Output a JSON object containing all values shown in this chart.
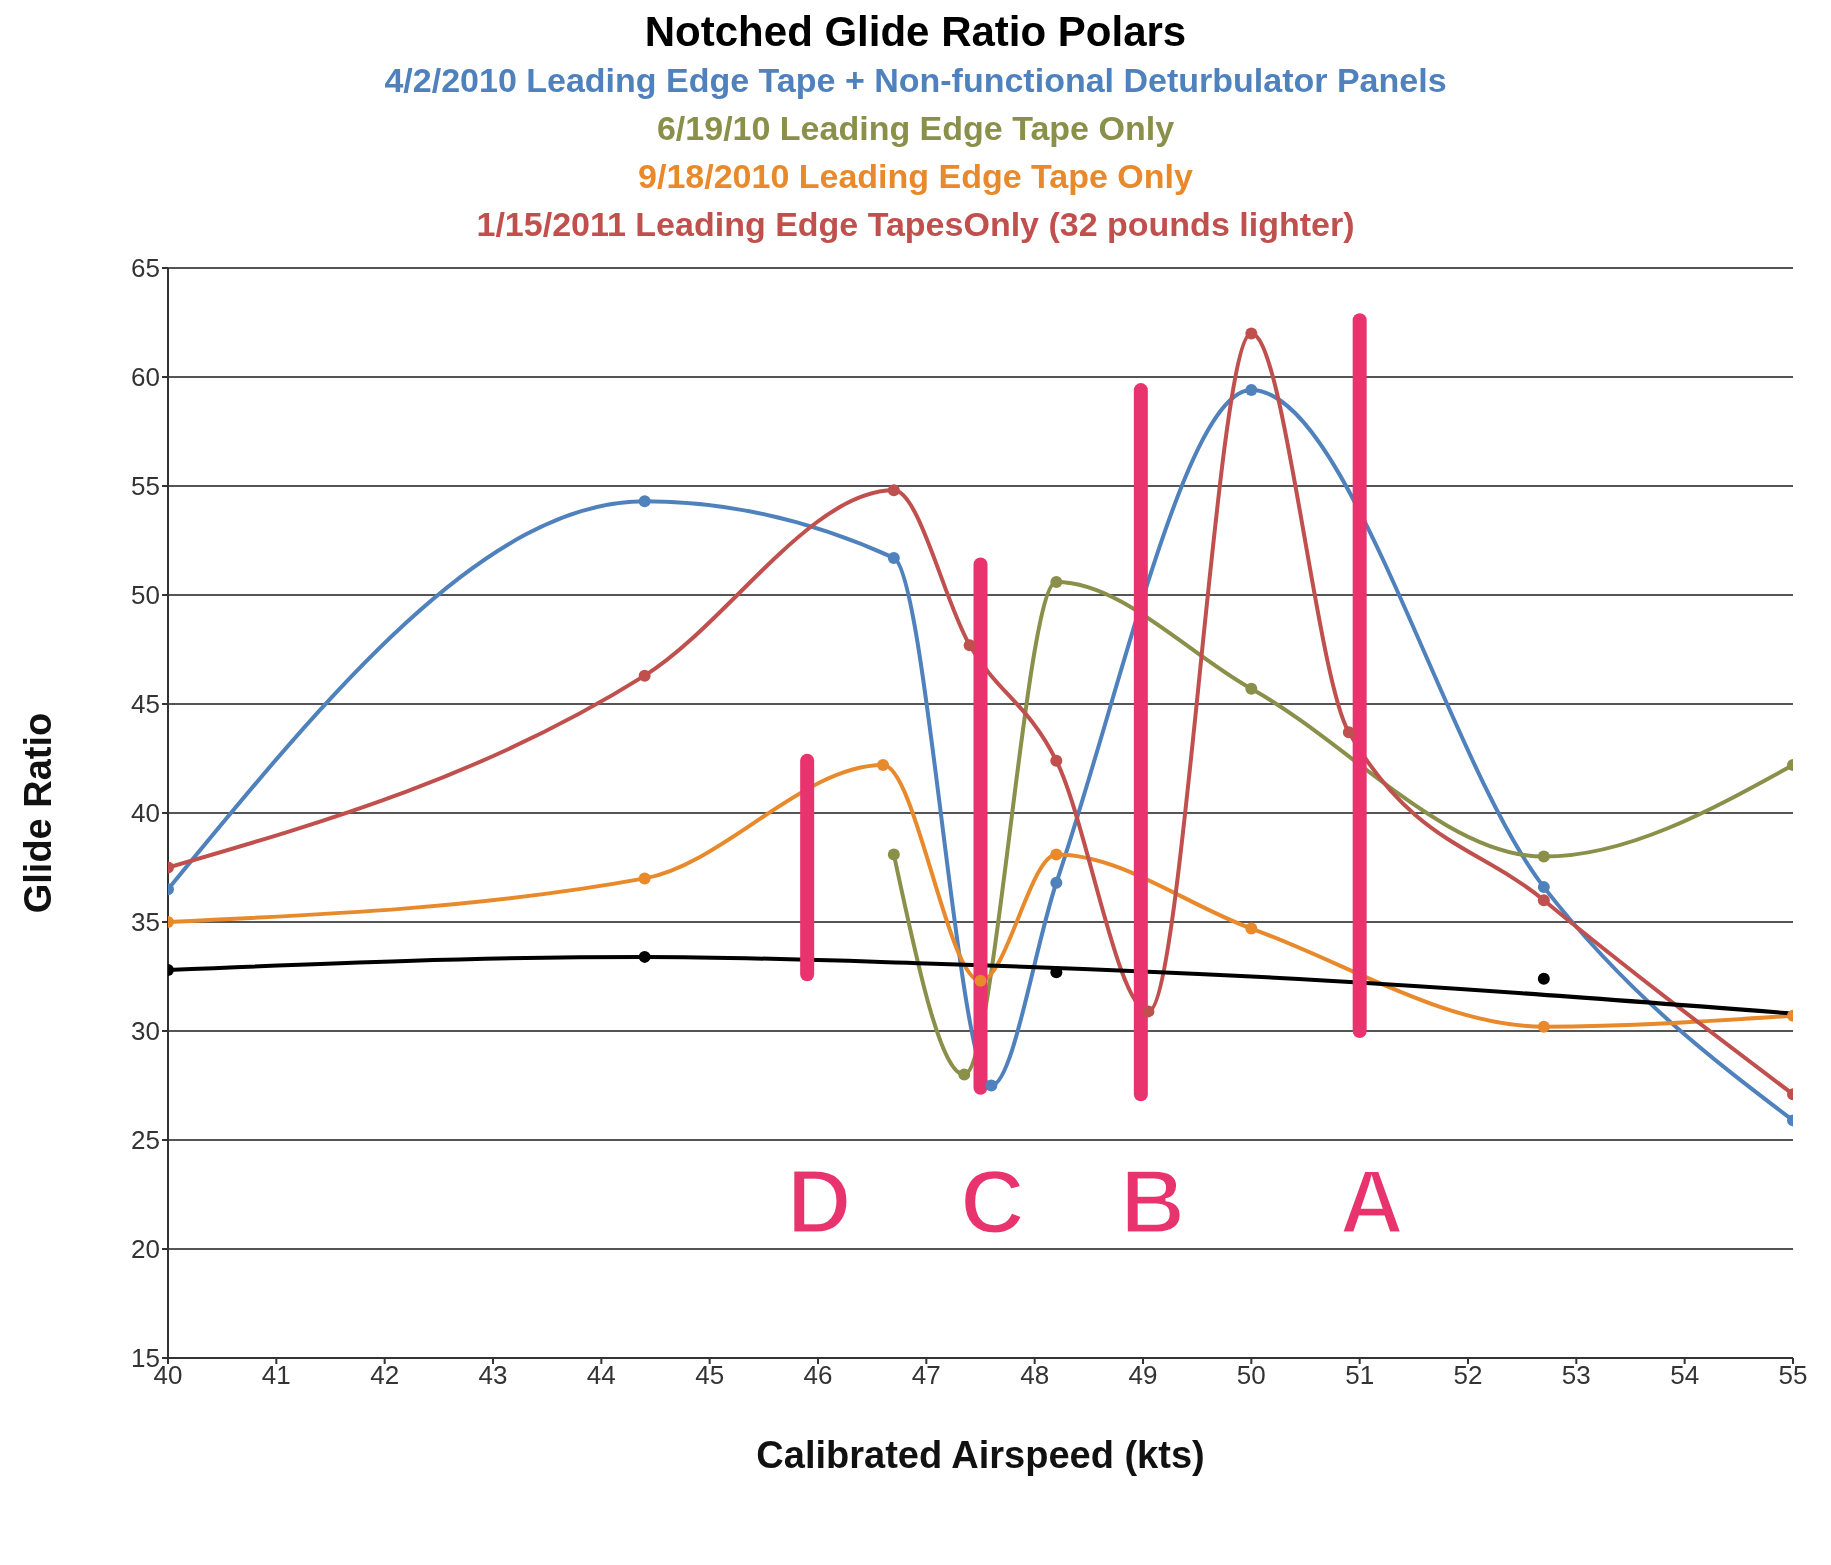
{
  "chart_data": {
    "type": "line",
    "title": "Notched Glide Ratio Polars",
    "xlabel": "Calibrated Airspeed (kts)",
    "ylabel": "Glide Ratio",
    "xlim": [
      40,
      55
    ],
    "xticks": [
      40,
      41,
      42,
      43,
      44,
      45,
      46,
      47,
      48,
      49,
      50,
      51,
      52,
      53,
      54,
      55
    ],
    "ylim": [
      15,
      65
    ],
    "yticks": [
      15,
      20,
      25,
      30,
      35,
      40,
      45,
      50,
      55,
      60,
      65
    ],
    "grid": "y",
    "legend": "top",
    "marker": "circle",
    "line_style": "solid",
    "series": [
      {
        "name": "4/2/2010 Leading Edge Tape + Non-functional Deturbulator Panels",
        "color": "#4f81bd",
        "x": [
          40,
          44.4,
          46.7,
          47.6,
          48.2,
          50,
          52.7,
          55
        ],
        "values": [
          36.5,
          54.3,
          51.7,
          27.5,
          36.8,
          59.4,
          36.6,
          25.9
        ]
      },
      {
        "name": "6/19/10 Leading Edge Tape Only",
        "color": "#8a8f4a",
        "x": [
          46.7,
          47.35,
          48.2,
          50,
          52.7,
          55
        ],
        "values": [
          38.1,
          28,
          50.6,
          45.7,
          38,
          42.2
        ]
      },
      {
        "name": "9/18/2010 Leading Edge Tape Only",
        "color": "#e8892c",
        "x": [
          40,
          44.4,
          46.6,
          47.5,
          48.2,
          50,
          52.7,
          55
        ],
        "values": [
          35,
          37,
          42.2,
          32.3,
          38.1,
          34.7,
          30.2,
          30.7
        ]
      },
      {
        "name": "1/15/2011 Leading Edge TapesOnly (32 pounds lighter)",
        "color": "#c0504d",
        "x": [
          40,
          44.4,
          46.7,
          47.4,
          48.2,
          49.05,
          50,
          50.9,
          52.7,
          55
        ],
        "values": [
          37.5,
          46.3,
          54.8,
          47.7,
          42.4,
          30.9,
          62,
          43.7,
          36,
          27.1
        ]
      },
      {
        "type": "scatter",
        "color": "#000000",
        "x": [
          40,
          44.4,
          48.2,
          52.7
        ],
        "values": [
          32.8,
          33.4,
          32.7,
          32.4
        ]
      },
      {
        "type": "line",
        "marker": "none",
        "color": "#000000",
        "x": [
          40,
          44.4,
          47,
          50,
          55
        ],
        "values": [
          32.8,
          33.4,
          33.1,
          32.5,
          30.8
        ]
      },
      {
        "type": "line",
        "marker": "none",
        "color": "#e8336e",
        "x": [
          45.9,
          45.9
        ],
        "values": [
          32.6,
          42.4
        ]
      },
      {
        "type": "line",
        "marker": "none",
        "color": "#e8336e",
        "x": [
          47.5,
          47.5
        ],
        "values": [
          27.4,
          51.4
        ]
      },
      {
        "type": "line",
        "marker": "none",
        "color": "#e8336e",
        "x": [
          48.98,
          48.98
        ],
        "values": [
          27.1,
          59.4
        ]
      },
      {
        "type": "line",
        "marker": "none",
        "color": "#e8336e",
        "x": [
          51,
          51
        ],
        "values": [
          30,
          62.6
        ]
      }
    ],
    "annotations": [
      "D",
      "C",
      "B",
      "A"
    ]
  }
}
